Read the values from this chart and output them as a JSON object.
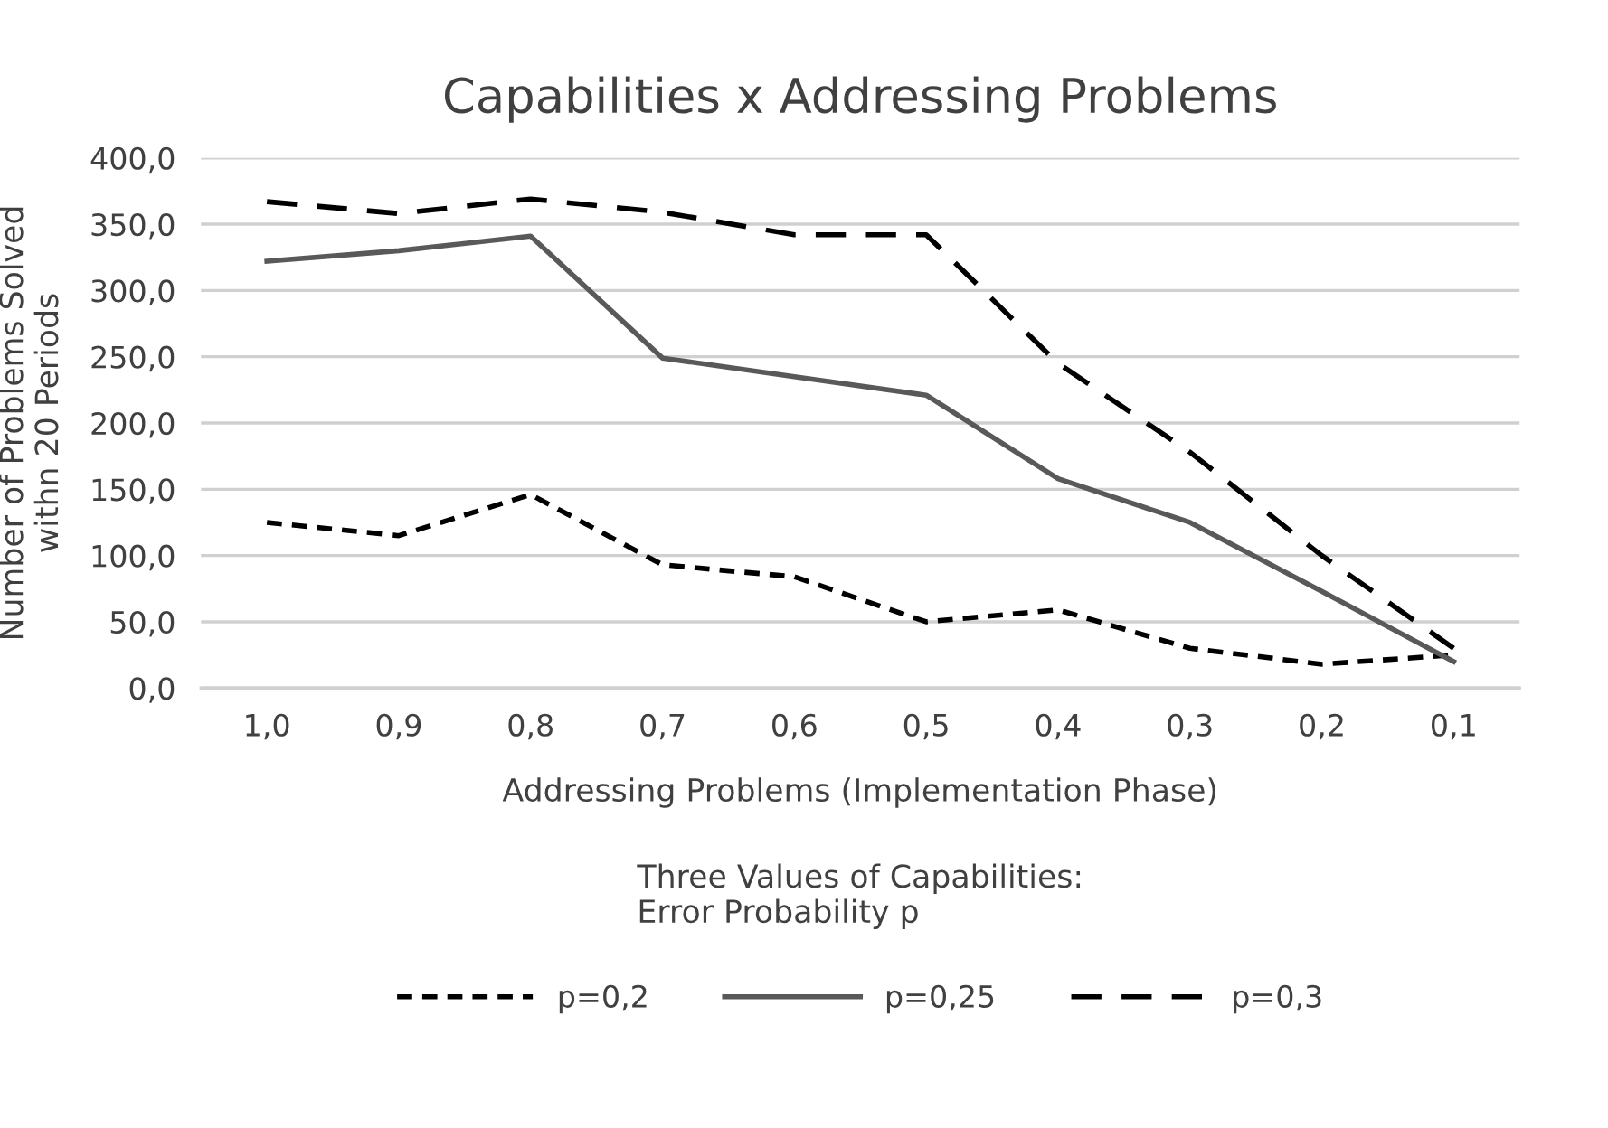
{
  "chart_data": {
    "type": "line",
    "title": "Capabilities x Addressing Problems",
    "xlabel": "Addressing Problems (Implementation Phase)",
    "ylabel": "Number of Problems Solved\nwithn 20 Periods",
    "legend_title": "Three Values of Capabilities:\nError Probability p",
    "categories": [
      "1,0",
      "0,9",
      "0,8",
      "0,7",
      "0,6",
      "0,5",
      "0,4",
      "0,3",
      "0,2",
      "0,1"
    ],
    "series": [
      {
        "name": "p=0,2",
        "color": "#000000",
        "line_style": "dotted",
        "values": [
          125,
          115,
          146,
          93,
          84,
          50,
          59,
          30,
          18,
          25
        ]
      },
      {
        "name": "p=0,25",
        "color": "#595959",
        "line_style": "solid",
        "values": [
          322,
          330,
          341,
          249,
          235,
          221,
          158,
          125,
          73,
          20
        ]
      },
      {
        "name": "p=0,3",
        "color": "#000000",
        "line_style": "dashed",
        "values": [
          367,
          358,
          369,
          359,
          342,
          342,
          245,
          178,
          100,
          30
        ]
      }
    ],
    "ylim": [
      0,
      400
    ],
    "yticks": [
      {
        "value": 0,
        "label": "0,0"
      },
      {
        "value": 50,
        "label": "50,0"
      },
      {
        "value": 100,
        "label": "100,0"
      },
      {
        "value": 150,
        "label": "150,0"
      },
      {
        "value": 200,
        "label": "200,0"
      },
      {
        "value": 250,
        "label": "250,0"
      },
      {
        "value": 300,
        "label": "300,0"
      },
      {
        "value": 350,
        "label": "350,0"
      },
      {
        "value": 400,
        "label": "400,0"
      }
    ],
    "grid": "y",
    "legend": "bottom",
    "marker": "none"
  }
}
